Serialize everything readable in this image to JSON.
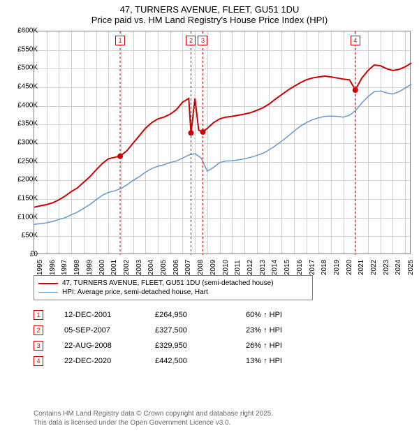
{
  "title": {
    "line1": "47, TURNERS AVENUE, FLEET, GU51 1DU",
    "line2": "Price paid vs. HM Land Registry's House Price Index (HPI)"
  },
  "chart": {
    "type": "line",
    "xlim": [
      1995,
      2025.5
    ],
    "ylim": [
      0,
      600000
    ],
    "ytick_step": 50000,
    "xtick_step": 1,
    "x_years": [
      1995,
      1996,
      1997,
      1998,
      1999,
      2000,
      2001,
      2002,
      2003,
      2004,
      2005,
      2006,
      2007,
      2008,
      2009,
      2010,
      2011,
      2012,
      2013,
      2014,
      2015,
      2016,
      2017,
      2018,
      2019,
      2020,
      2021,
      2022,
      2023,
      2024,
      2025
    ],
    "y_labels": [
      "£0",
      "£50K",
      "£100K",
      "£150K",
      "£200K",
      "£250K",
      "£300K",
      "£350K",
      "£400K",
      "£450K",
      "£500K",
      "£550K",
      "£600K"
    ],
    "background_color": "#ffffff",
    "grid_color": "#d0d0d0",
    "border_color": "#808080",
    "title_fontsize": 13,
    "axis_fontsize": 10,
    "series": {
      "property": {
        "label": "47, TURNERS AVENUE, FLEET, GU51 1DU (semi-detached house)",
        "color": "#cc0000",
        "line_width": 2,
        "x": [
          1995,
          1995.5,
          1996,
          1996.5,
          1997,
          1997.5,
          1998,
          1998.5,
          1999,
          1999.5,
          2000,
          2000.5,
          2001,
          2001.5,
          2001.95,
          2002.5,
          2003,
          2003.5,
          2004,
          2004.5,
          2005,
          2005.5,
          2006,
          2006.5,
          2007,
          2007.5,
          2007.68,
          2008,
          2008.3,
          2008.64,
          2009,
          2009.5,
          2010,
          2010.5,
          2011,
          2011.5,
          2012,
          2012.5,
          2013,
          2013.5,
          2014,
          2014.5,
          2015,
          2015.5,
          2016,
          2016.5,
          2017,
          2017.5,
          2018,
          2018.5,
          2019,
          2019.5,
          2020,
          2020.5,
          2020.97,
          2021.5,
          2022,
          2022.5,
          2023,
          2023.5,
          2024,
          2024.5,
          2025,
          2025.5
        ],
        "y": [
          128,
          132,
          135,
          140,
          148,
          158,
          170,
          180,
          195,
          210,
          228,
          245,
          258,
          262,
          265,
          280,
          300,
          320,
          340,
          355,
          365,
          370,
          378,
          390,
          410,
          420,
          327,
          420,
          335,
          330,
          340,
          355,
          365,
          370,
          372,
          375,
          378,
          382,
          388,
          395,
          405,
          418,
          430,
          442,
          452,
          462,
          470,
          475,
          478,
          480,
          478,
          475,
          472,
          470,
          443,
          475,
          495,
          510,
          508,
          500,
          495,
          498,
          505,
          515
        ]
      },
      "hpi": {
        "label": "HPI: Average price, semi-detached house, Hart",
        "color": "#6699cc",
        "line_width": 1.5,
        "x": [
          1995,
          1995.5,
          1996,
          1996.5,
          1997,
          1997.5,
          1998,
          1998.5,
          1999,
          1999.5,
          2000,
          2000.5,
          2001,
          2001.5,
          2002,
          2002.5,
          2003,
          2003.5,
          2004,
          2004.5,
          2005,
          2005.5,
          2006,
          2006.5,
          2007,
          2007.5,
          2008,
          2008.5,
          2009,
          2009.5,
          2010,
          2010.5,
          2011,
          2011.5,
          2012,
          2012.5,
          2013,
          2013.5,
          2014,
          2014.5,
          2015,
          2015.5,
          2016,
          2016.5,
          2017,
          2017.5,
          2018,
          2018.5,
          2019,
          2019.5,
          2020,
          2020.5,
          2021,
          2021.5,
          2022,
          2022.5,
          2023,
          2023.5,
          2024,
          2024.5,
          2025,
          2025.5
        ],
        "y": [
          82,
          84,
          86,
          90,
          95,
          100,
          108,
          115,
          125,
          135,
          148,
          160,
          168,
          172,
          178,
          188,
          200,
          210,
          222,
          232,
          238,
          242,
          248,
          252,
          260,
          268,
          272,
          260,
          225,
          235,
          248,
          252,
          253,
          255,
          258,
          262,
          267,
          273,
          282,
          293,
          305,
          318,
          332,
          345,
          355,
          363,
          368,
          372,
          373,
          372,
          370,
          375,
          388,
          408,
          425,
          438,
          440,
          435,
          432,
          438,
          448,
          458
        ]
      }
    },
    "sale_markers": [
      {
        "n": "1",
        "x": 2001.95,
        "y": 264950
      },
      {
        "n": "2",
        "x": 2007.68,
        "y": 327500
      },
      {
        "n": "3",
        "x": 2008.64,
        "y": 329950
      },
      {
        "n": "4",
        "x": 2020.97,
        "y": 442500
      }
    ]
  },
  "legend": {
    "items": [
      {
        "color": "#cc0000",
        "width": 2,
        "label": "47, TURNERS AVENUE, FLEET, GU51 1DU (semi-detached house)"
      },
      {
        "color": "#6699cc",
        "width": 1.5,
        "label": "HPI: Average price, semi-detached house, Hart"
      }
    ]
  },
  "sales": [
    {
      "n": "1",
      "date": "12-DEC-2001",
      "price": "£264,950",
      "pct": "60% ↑ HPI"
    },
    {
      "n": "2",
      "date": "05-SEP-2007",
      "price": "£327,500",
      "pct": "23% ↑ HPI"
    },
    {
      "n": "3",
      "date": "22-AUG-2008",
      "price": "£329,950",
      "pct": "26% ↑ HPI"
    },
    {
      "n": "4",
      "date": "22-DEC-2020",
      "price": "£442,500",
      "pct": "13% ↑ HPI"
    }
  ],
  "footer": {
    "line1": "Contains HM Land Registry data © Crown copyright and database right 2025.",
    "line2": "This data is licensed under the Open Government Licence v3.0."
  }
}
